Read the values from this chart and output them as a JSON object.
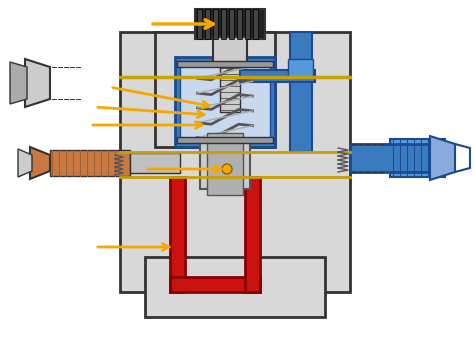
{
  "bg_color": "#f0f0f0",
  "body_color": "#d8d8d8",
  "body_outline": "#333333",
  "blue_color": "#3a7abf",
  "red_color": "#cc1111",
  "copper_color": "#c87941",
  "spring_color": "#aaaaaa",
  "spring_dark": "#666666",
  "blue_dark": "#1a4a8f",
  "knob_color": "#222222",
  "arrow_color": "#f5a800",
  "gold_line": "#c8a000",
  "white_color": "#ffffff",
  "light_gray": "#cccccc",
  "metal_color": "#999999",
  "dark_metal": "#555555"
}
